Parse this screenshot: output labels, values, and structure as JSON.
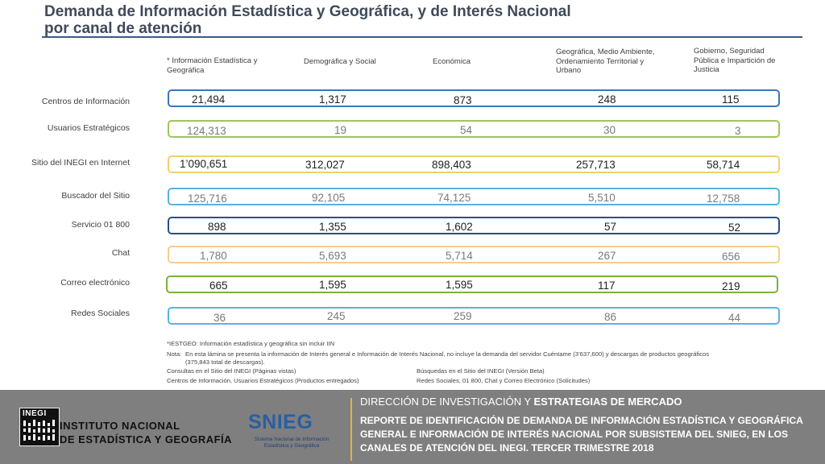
{
  "title_line1": "Demanda de Información Estadística y Geográfica, y de Interés Nacional",
  "title_line2": "por canal de atención",
  "columns": [
    "* Información Estadística y Geográfica",
    "Demográfica y Social",
    "Económica",
    "Geográfica, Medio Ambiente, Ordenamiento Territorial y Urbano",
    "Gobierno, Seguridad Pública e Impartición de Justicia"
  ],
  "rows": [
    {
      "label": "Centros de Información",
      "color": "#3a76b8",
      "values": [
        "21,494",
        "1,317",
        "873",
        "248",
        "115"
      ]
    },
    {
      "label": "Usuarios Estratégicos",
      "color": "#9fc65a",
      "values": [
        "124,313",
        "19",
        "54",
        "30",
        "3"
      ]
    },
    {
      "label": "Sitio del INEGI en Internet",
      "color": "#f2cf6a",
      "values": [
        "1’090,651",
        "312,027",
        "898,403",
        "257,713",
        "58,714"
      ]
    },
    {
      "label": "Buscador del Sitio",
      "color": "#56b4de",
      "values": [
        "125,716",
        "92,105",
        "74,125",
        "5,510",
        "12,758"
      ]
    },
    {
      "label": "Servicio 01 800",
      "color": "#2a4f88",
      "values": [
        "898",
        "1,355",
        "1,602",
        "57",
        "52"
      ]
    },
    {
      "label": "Chat",
      "color": "#f2cf8a",
      "values": [
        "1,780",
        "5,693",
        "5,714",
        "267",
        "656"
      ]
    },
    {
      "label": "Correo electrónico",
      "color": "#7ab33a",
      "values": [
        "665",
        "1,595",
        "1,595",
        "117",
        "219"
      ]
    },
    {
      "label": "Redes Sociales",
      "color": "#56b4de",
      "values": [
        "36",
        "245",
        "259",
        "86",
        "44"
      ]
    }
  ],
  "notes": {
    "iestgeo": "*IESTGEO: Información estadística y geográfica sin incluir IIN",
    "nota_label": "Nota:",
    "nota_line1": "En esta lámina se presenta la información de Interés general e Información de Interés Nacional, no incluye la demanda del servidor Cuéntame (3’637,600) y descargas de productos geográficos",
    "nota_line2": "(375,843 total de descargas).",
    "left1": "Consultas en el Sitio del INEGI (Páginas vistas)",
    "right1": "Búsquedas en el Sitio del INEGI (Versión Beta)",
    "left2": "Centros de Información, Usuarios Estratégicos  (Productos entregados)",
    "right2": "Redes Sociales, 01 800, Chat y Correo Electrónico (Solicitudes)"
  },
  "footer": {
    "inegi_logo_text": "INEGI",
    "inegi_name_line1": "INSTITUTO NACIONAL",
    "inegi_name_line2": "DE ESTADÍSTICA Y GEOGRAFÍA",
    "snieg_logo_text": "SNIEG",
    "snieg_sub": "Sistema Nacional de Información Estadística y Geográfica",
    "direction_part1": "DIRECCIÓN DE INVESTIGACIÓN Y ",
    "direction_part2": "ESTRATEGIAS DE MERCADO",
    "report": "REPORTE DE IDENTIFICACIÓN DE DEMANDA DE INFORMACIÓN ESTADÍSTICA  Y GEOGRÁFICA GENERAL E INFORMACIÓN DE INTERÉS NACIONAL POR SUBSISTEMA DEL SNIEG, EN LOS CANALES DE ATENCIÓN DEL INEGI. TERCER TRIMESTRE 2018"
  }
}
